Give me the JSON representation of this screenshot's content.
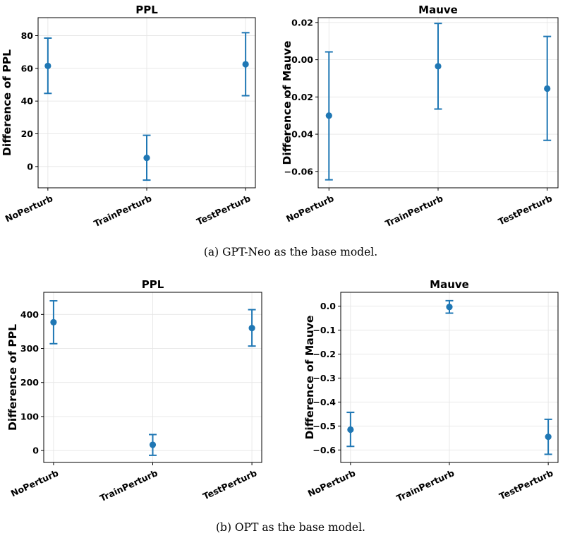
{
  "chart_data": [
    {
      "type": "scatter",
      "title": "PPL",
      "ylabel": "Difference of PPL",
      "categories": [
        "NoPerturb",
        "TrainPerturb",
        "TestPerturb"
      ],
      "values": [
        61.5,
        5.3,
        62.5
      ],
      "err_low": [
        44.7,
        -8.3,
        43.3
      ],
      "err_high": [
        78.5,
        19.1,
        81.8
      ],
      "ylim": [
        -13,
        91
      ],
      "yticks": [
        "0",
        "20",
        "40",
        "60",
        "80"
      ],
      "ytick_values": [
        0,
        20,
        40,
        60,
        80
      ],
      "grid": true,
      "color": "#1f77b4"
    },
    {
      "type": "scatter",
      "title": "Mauve",
      "ylabel": "Difference of Mauve",
      "categories": [
        "NoPerturb",
        "TrainPerturb",
        "TestPerturb"
      ],
      "values": [
        -0.03,
        -0.0035,
        -0.0155
      ],
      "err_low": [
        -0.0645,
        -0.0265,
        -0.0433
      ],
      "err_high": [
        0.0042,
        0.0195,
        0.0125
      ],
      "ylim": [
        -0.0688,
        0.0226
      ],
      "yticks": [
        "0.02",
        "0.00",
        "−0.02",
        "−0.04",
        "−0.06"
      ],
      "ytick_values": [
        0.02,
        0.0,
        -0.02,
        -0.04,
        -0.06
      ],
      "grid": true,
      "color": "#1f77b4"
    },
    {
      "type": "scatter",
      "title": "PPL",
      "ylabel": "Difference of PPL",
      "categories": [
        "NoPerturb",
        "TrainPerturb",
        "TestPerturb"
      ],
      "values": [
        377,
        17,
        360
      ],
      "err_low": [
        314,
        -14,
        307
      ],
      "err_high": [
        440,
        47,
        414
      ],
      "ylim": [
        -35,
        465
      ],
      "yticks": [
        "0",
        "100",
        "200",
        "300",
        "400"
      ],
      "ytick_values": [
        0,
        100,
        200,
        300,
        400
      ],
      "grid": true,
      "color": "#1f77b4"
    },
    {
      "type": "scatter",
      "title": "Mauve",
      "ylabel": "Difference of Mauve",
      "categories": [
        "NoPerturb",
        "TrainPerturb",
        "TestPerturb"
      ],
      "values": [
        -0.515,
        -0.003,
        -0.545
      ],
      "err_low": [
        -0.585,
        -0.029,
        -0.618
      ],
      "err_high": [
        -0.443,
        0.023,
        -0.472
      ],
      "ylim": [
        -0.652,
        0.058
      ],
      "yticks": [
        "0.0",
        "−0.1",
        "−0.2",
        "−0.3",
        "−0.4",
        "−0.5",
        "−0.6"
      ],
      "ytick_values": [
        0.0,
        -0.1,
        -0.2,
        -0.3,
        -0.4,
        -0.5,
        -0.6
      ],
      "grid": true,
      "color": "#1f77b4"
    }
  ],
  "captions": {
    "a": "(a) GPT-Neo as the base model.",
    "b": "(b) OPT as the base model."
  }
}
